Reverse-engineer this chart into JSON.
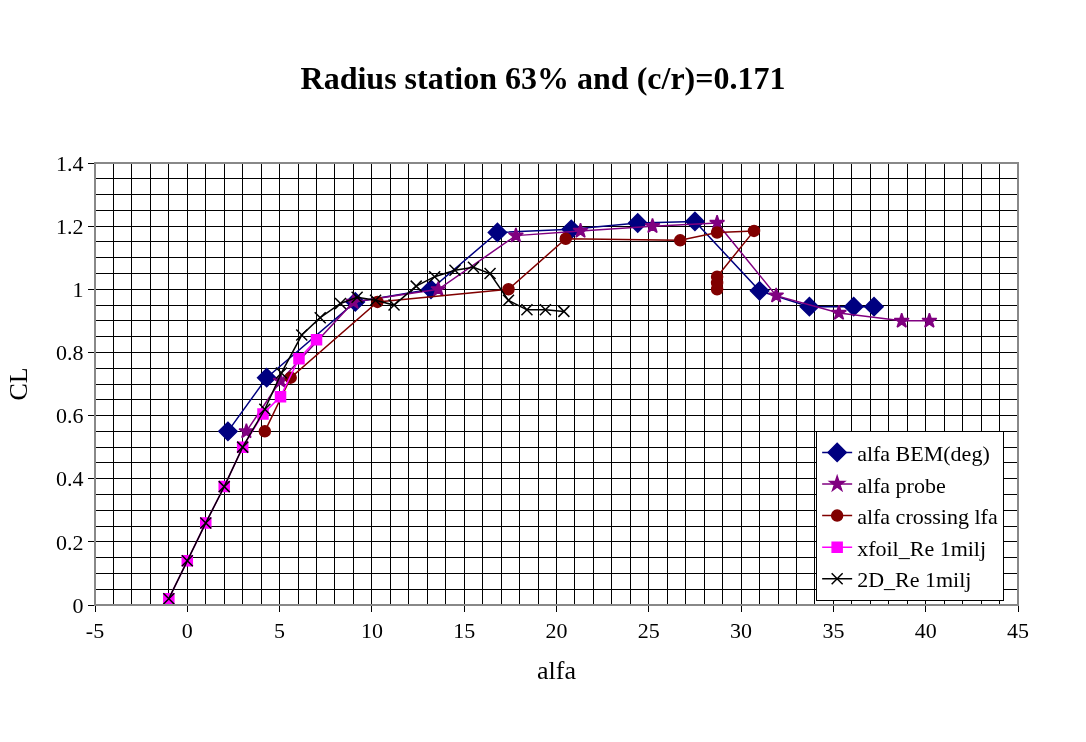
{
  "chart_data": {
    "type": "line",
    "title": "Radius station 63% and (c/r)=0.171",
    "xlabel": "alfa",
    "ylabel": "CL",
    "xlim": [
      -5,
      45
    ],
    "xticks": [
      -5,
      0,
      5,
      10,
      15,
      20,
      25,
      30,
      35,
      40,
      45
    ],
    "ylim": [
      0,
      1.4
    ],
    "yticks": [
      0,
      0.2,
      0.4,
      0.6,
      0.8,
      1,
      1.2,
      1.4
    ],
    "grid": true,
    "legend": "bottom right",
    "series": [
      {
        "name": "alfa BEM(deg)",
        "color": "#000080",
        "marker": "diamond",
        "x": [
          2.2,
          4.3,
          9.1,
          13.2,
          16.8,
          20.8,
          24.4,
          27.5,
          31.0,
          33.7,
          36.1,
          37.2
        ],
        "values": [
          0.55,
          0.72,
          0.96,
          1.0,
          1.18,
          1.19,
          1.21,
          1.215,
          0.995,
          0.945,
          0.945,
          0.945
        ]
      },
      {
        "name": "alfa probe",
        "color": "#800080",
        "marker": "star",
        "x": [
          3.2,
          5.05,
          9.0,
          13.6,
          17.8,
          21.3,
          25.2,
          28.7,
          31.9,
          35.3,
          38.7,
          40.2
        ],
        "values": [
          0.55,
          0.71,
          0.96,
          1.0,
          1.17,
          1.185,
          1.2,
          1.21,
          0.98,
          0.925,
          0.9,
          0.9
        ]
      },
      {
        "name": "alfa crossing lfa",
        "color": "#800000",
        "marker": "circle",
        "x": [
          4.2,
          5.6,
          10.3,
          17.4,
          20.5,
          26.7,
          28.7,
          30.7,
          28.7,
          28.7,
          28.7
        ],
        "values": [
          0.55,
          0.72,
          0.96,
          1.0,
          1.16,
          1.155,
          1.18,
          1.185,
          1.04,
          1.02,
          1.0
        ]
      },
      {
        "name": "xfoil_Re 1milj",
        "color": "#ff00ff",
        "marker": "square",
        "x": [
          -1,
          0,
          1,
          2,
          3,
          4.1,
          5.05,
          6.05,
          7.0
        ],
        "values": [
          0.02,
          0.14,
          0.26,
          0.375,
          0.5,
          0.605,
          0.66,
          0.78,
          0.84
        ]
      },
      {
        "name": "2D_Re 1milj",
        "color": "#000000",
        "marker": "cross",
        "x": [
          -1,
          0,
          1,
          2,
          3,
          4.2,
          5.1,
          6.2,
          7.2,
          8.3,
          9.2,
          10.2,
          11.2,
          12.4,
          13.4,
          14.5,
          15.5,
          16.4,
          17.4,
          18.4,
          19.4,
          20.4
        ],
        "values": [
          0.02,
          0.14,
          0.26,
          0.375,
          0.5,
          0.62,
          0.735,
          0.855,
          0.91,
          0.955,
          0.975,
          0.965,
          0.95,
          1.01,
          1.04,
          1.06,
          1.07,
          1.05,
          0.965,
          0.935,
          0.935,
          0.93
        ]
      }
    ]
  }
}
